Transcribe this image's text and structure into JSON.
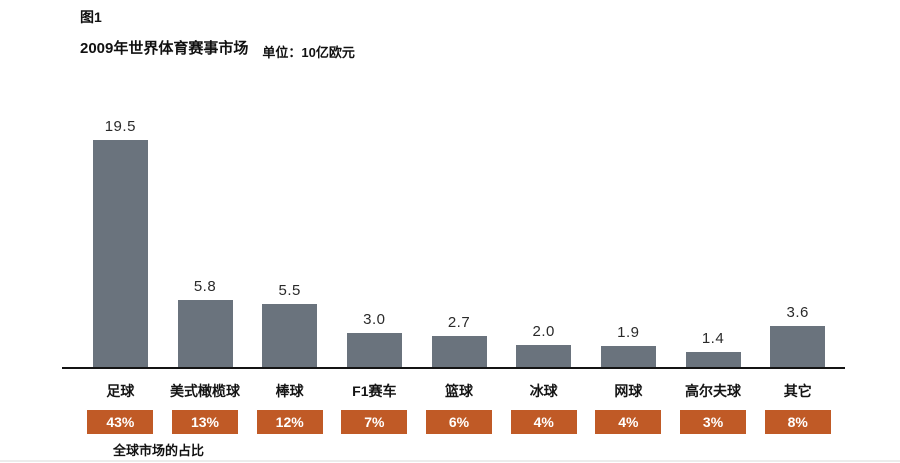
{
  "header": {
    "figure_label": "图1",
    "title": "2009年世界体育赛事市场",
    "unit": "单位：10亿欧元"
  },
  "footer": {
    "share_label": "全球市场的占比"
  },
  "colors": {
    "bar": "#6a737d",
    "badge": "#c05a26",
    "axis": "#141414"
  },
  "chart_data": {
    "type": "bar",
    "title": "2009年世界体育赛事市场",
    "unit_label": "单位：10亿欧元",
    "categories": [
      "足球",
      "美式橄榄球",
      "棒球",
      "F1赛车",
      "篮球",
      "冰球",
      "网球",
      "高尔夫球",
      "其它"
    ],
    "values": [
      19.5,
      5.8,
      5.5,
      3.0,
      2.7,
      2.0,
      1.9,
      1.4,
      3.6
    ],
    "value_labels": [
      "19.5",
      "5.8",
      "5.5",
      "3.0",
      "2.7",
      "2.0",
      "1.9",
      "1.4",
      "3.6"
    ],
    "percentages": [
      "43%",
      "13%",
      "12%",
      "7%",
      "6%",
      "4%",
      "4%",
      "3%",
      "8%"
    ],
    "percent_row_label": "全球市场的占比",
    "ylim": [
      0,
      20
    ],
    "grid": false,
    "legend": "none",
    "bar_color": "#6a737d",
    "badge_color": "#c05a26"
  }
}
